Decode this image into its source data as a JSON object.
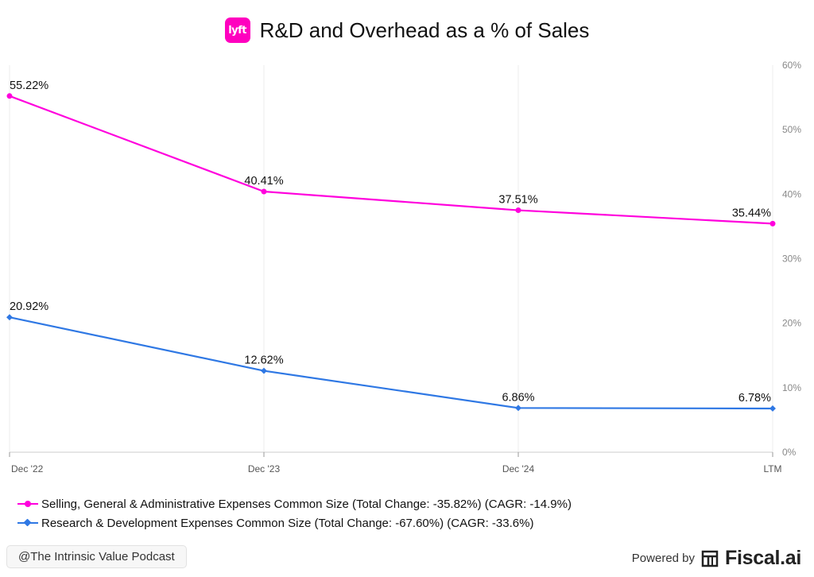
{
  "header": {
    "title": "R&D and Overhead as a % of Sales",
    "logo_text": "lyft",
    "logo_color": "#ff00bf"
  },
  "chart_data": {
    "type": "line",
    "categories": [
      "Dec '22",
      "Dec '23",
      "Dec '24",
      "LTM"
    ],
    "ylim": [
      0,
      60
    ],
    "yticks": [
      "0%",
      "10%",
      "20%",
      "30%",
      "40%",
      "50%",
      "60%"
    ],
    "y_axis_side": "right",
    "grid": true,
    "legend_placement": "bottom-left",
    "series": [
      {
        "name": "Selling, General & Administrative Expenses Common Size (Total Change: -35.82%) (CAGR: -14.9%)",
        "color": "#ff00dd",
        "marker": "circle",
        "values": [
          55.22,
          40.41,
          37.51,
          35.44
        ],
        "labels": [
          "55.22%",
          "40.41%",
          "37.51%",
          "35.44%"
        ]
      },
      {
        "name": "Research & Development Expenses Common Size (Total Change: -67.60%) (CAGR: -33.6%)",
        "color": "#2f78e4",
        "marker": "diamond",
        "values": [
          20.92,
          12.62,
          6.86,
          6.78
        ],
        "labels": [
          "20.92%",
          "12.62%",
          "6.86%",
          "6.78%"
        ]
      }
    ]
  },
  "footer": {
    "watermark": "@The Intrinsic Value Podcast",
    "powered_by": "Powered by",
    "brand": "Fiscal.ai"
  }
}
